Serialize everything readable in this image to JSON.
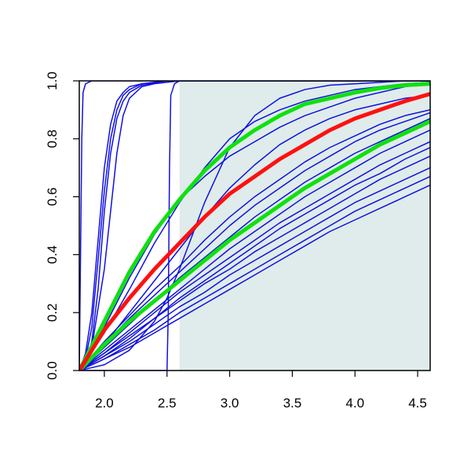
{
  "chart_data": {
    "type": "line",
    "title": "",
    "xlabel": "",
    "ylabel": "",
    "xlim": [
      1.8,
      4.6
    ],
    "ylim": [
      0.0,
      1.0
    ],
    "x_ticks": [
      2.0,
      2.5,
      3.0,
      3.5,
      4.0,
      4.5
    ],
    "y_ticks": [
      0.0,
      0.2,
      0.4,
      0.6,
      0.8,
      1.0
    ],
    "x_tick_labels": [
      "2.0",
      "2.5",
      "3.0",
      "3.5",
      "4.0",
      "4.5"
    ],
    "y_tick_labels": [
      "0.0",
      "0.2",
      "0.4",
      "0.6",
      "0.8",
      "1.0"
    ],
    "shaded_region": {
      "x_from": 2.6,
      "x_to": 4.6,
      "color": "#dfeceb"
    },
    "grid": false,
    "legend": "none",
    "colors": {
      "curves": "#1010e0",
      "highlight": "#ff1010",
      "bounds": "#10e010",
      "axis": "#000000"
    },
    "series": [
      {
        "color": "#ff1010",
        "width": 5,
        "x": [
          1.8,
          2.0,
          2.2,
          2.4,
          2.6,
          2.8,
          3.0,
          3.2,
          3.4,
          3.6,
          3.8,
          4.0,
          4.2,
          4.4,
          4.6
        ],
        "y": [
          0.0,
          0.14,
          0.25,
          0.35,
          0.44,
          0.53,
          0.61,
          0.67,
          0.73,
          0.78,
          0.83,
          0.87,
          0.9,
          0.93,
          0.955
        ]
      },
      {
        "color": "#10e010",
        "width": 5,
        "x": [
          1.8,
          2.0,
          2.2,
          2.4,
          2.6,
          2.8,
          3.0,
          3.2,
          3.4,
          3.6,
          3.8,
          4.0,
          4.2,
          4.4,
          4.6
        ],
        "y": [
          0.0,
          0.17,
          0.34,
          0.48,
          0.59,
          0.69,
          0.77,
          0.83,
          0.88,
          0.92,
          0.94,
          0.96,
          0.975,
          0.985,
          0.99
        ]
      },
      {
        "color": "#10e010",
        "width": 5,
        "x": [
          1.8,
          2.0,
          2.2,
          2.4,
          2.6,
          2.8,
          3.0,
          3.2,
          3.4,
          3.6,
          3.8,
          4.0,
          4.2,
          4.4,
          4.6
        ],
        "y": [
          0.0,
          0.09,
          0.17,
          0.24,
          0.31,
          0.38,
          0.45,
          0.51,
          0.57,
          0.63,
          0.68,
          0.73,
          0.78,
          0.82,
          0.86
        ]
      },
      {
        "color": "#1010e0",
        "width": 1.5,
        "x": [
          1.8,
          1.81,
          1.82,
          1.83,
          1.85,
          1.9,
          4.6
        ],
        "y": [
          0.0,
          0.4,
          0.8,
          0.96,
          0.99,
          1.0,
          1.0
        ]
      },
      {
        "color": "#1010e0",
        "width": 1.5,
        "x": [
          1.8,
          1.85,
          1.9,
          1.95,
          2.0,
          2.05,
          2.1,
          2.15,
          2.2,
          2.3,
          2.5,
          4.6
        ],
        "y": [
          0.0,
          0.04,
          0.15,
          0.38,
          0.62,
          0.8,
          0.9,
          0.95,
          0.97,
          0.99,
          1.0,
          1.0
        ]
      },
      {
        "color": "#1010e0",
        "width": 1.5,
        "x": [
          1.8,
          1.85,
          1.9,
          1.95,
          2.0,
          2.05,
          2.1,
          2.15,
          2.2,
          2.3,
          2.5,
          4.6
        ],
        "y": [
          0.0,
          0.03,
          0.1,
          0.28,
          0.55,
          0.75,
          0.87,
          0.93,
          0.96,
          0.985,
          1.0,
          1.0
        ]
      },
      {
        "color": "#1010e0",
        "width": 1.5,
        "x": [
          1.8,
          1.85,
          1.9,
          1.95,
          2.0,
          2.05,
          2.1,
          2.15,
          2.2,
          2.3,
          2.5,
          4.6
        ],
        "y": [
          0.0,
          0.06,
          0.2,
          0.45,
          0.7,
          0.85,
          0.93,
          0.96,
          0.98,
          0.99,
          1.0,
          1.0
        ]
      },
      {
        "color": "#1010e0",
        "width": 1.5,
        "x": [
          1.8,
          1.9,
          2.0,
          2.1,
          2.15,
          2.2,
          2.3,
          2.4,
          2.6,
          4.6
        ],
        "y": [
          0.0,
          0.08,
          0.35,
          0.75,
          0.88,
          0.94,
          0.98,
          0.99,
          1.0,
          1.0
        ]
      },
      {
        "color": "#1010e0",
        "width": 1.5,
        "x": [
          1.8,
          2.5,
          2.51,
          2.52,
          2.53,
          2.56,
          2.6,
          4.6
        ],
        "y": [
          0.0,
          0.0,
          0.2,
          0.7,
          0.95,
          0.99,
          1.0,
          1.0
        ]
      },
      {
        "color": "#1010e0",
        "width": 1.5,
        "x": [
          1.8,
          2.0,
          2.2,
          2.4,
          2.6,
          2.8,
          3.0,
          3.2,
          3.4,
          3.6,
          3.8,
          4.0,
          4.2,
          4.4,
          4.6
        ],
        "y": [
          0.0,
          0.13,
          0.28,
          0.44,
          0.58,
          0.7,
          0.8,
          0.86,
          0.9,
          0.93,
          0.95,
          0.97,
          0.98,
          0.99,
          0.995
        ]
      },
      {
        "color": "#1010e0",
        "width": 1.5,
        "x": [
          1.8,
          2.0,
          2.2,
          2.4,
          2.5,
          2.6,
          2.8,
          3.0,
          3.2,
          3.4,
          3.6,
          3.8,
          4.0,
          4.2,
          4.4,
          4.6
        ],
        "y": [
          0.0,
          0.02,
          0.07,
          0.17,
          0.25,
          0.35,
          0.58,
          0.77,
          0.88,
          0.94,
          0.97,
          0.985,
          0.99,
          0.995,
          1.0,
          1.0
        ]
      },
      {
        "color": "#1010e0",
        "width": 1.5,
        "x": [
          1.8,
          2.0,
          2.2,
          2.4,
          2.6,
          2.8,
          3.0,
          3.2,
          3.4,
          3.6,
          3.8,
          4.0,
          4.2,
          4.4,
          4.6
        ],
        "y": [
          0.0,
          0.15,
          0.32,
          0.47,
          0.59,
          0.67,
          0.74,
          0.79,
          0.84,
          0.88,
          0.91,
          0.94,
          0.96,
          0.98,
          0.99
        ]
      },
      {
        "color": "#1010e0",
        "width": 1.5,
        "x": [
          1.8,
          2.0,
          2.2,
          2.4,
          2.6,
          2.8,
          3.0,
          3.2,
          3.4,
          3.6,
          3.8,
          4.0,
          4.2,
          4.4,
          4.6
        ],
        "y": [
          0.0,
          0.09,
          0.2,
          0.31,
          0.42,
          0.53,
          0.63,
          0.71,
          0.78,
          0.83,
          0.87,
          0.9,
          0.92,
          0.94,
          0.95
        ]
      },
      {
        "color": "#1010e0",
        "width": 1.5,
        "x": [
          1.8,
          2.0,
          2.2,
          2.4,
          2.6,
          2.8,
          3.0,
          3.2,
          3.4,
          3.6,
          3.8,
          4.0,
          4.2,
          4.4,
          4.6
        ],
        "y": [
          0.0,
          0.1,
          0.19,
          0.28,
          0.36,
          0.45,
          0.53,
          0.6,
          0.66,
          0.72,
          0.77,
          0.81,
          0.85,
          0.88,
          0.9
        ]
      },
      {
        "color": "#1010e0",
        "width": 1.5,
        "x": [
          1.8,
          2.0,
          2.2,
          2.4,
          2.6,
          2.8,
          3.0,
          3.2,
          3.4,
          3.6,
          3.8,
          4.0,
          4.2,
          4.4,
          4.6
        ],
        "y": [
          0.0,
          0.09,
          0.18,
          0.26,
          0.34,
          0.42,
          0.5,
          0.57,
          0.63,
          0.69,
          0.74,
          0.79,
          0.83,
          0.86,
          0.89
        ]
      },
      {
        "color": "#1010e0",
        "width": 1.5,
        "x": [
          1.8,
          2.0,
          2.2,
          2.4,
          2.6,
          2.8,
          3.0,
          3.2,
          3.4,
          3.6,
          3.8,
          4.0,
          4.2,
          4.4,
          4.6
        ],
        "y": [
          0.0,
          0.08,
          0.16,
          0.24,
          0.32,
          0.39,
          0.46,
          0.53,
          0.59,
          0.65,
          0.7,
          0.75,
          0.79,
          0.83,
          0.87
        ]
      },
      {
        "color": "#1010e0",
        "width": 1.5,
        "x": [
          1.8,
          2.0,
          2.2,
          2.4,
          2.6,
          2.8,
          3.0,
          3.2,
          3.4,
          3.6,
          3.8,
          4.0,
          4.2,
          4.4,
          4.6
        ],
        "y": [
          0.0,
          0.07,
          0.14,
          0.21,
          0.28,
          0.35,
          0.42,
          0.48,
          0.54,
          0.6,
          0.65,
          0.7,
          0.75,
          0.79,
          0.83
        ]
      },
      {
        "color": "#1010e0",
        "width": 1.5,
        "x": [
          1.8,
          2.0,
          2.2,
          2.4,
          2.6,
          2.8,
          3.0,
          3.2,
          3.4,
          3.6,
          3.8,
          4.0,
          4.2,
          4.4,
          4.6
        ],
        "y": [
          0.0,
          0.06,
          0.13,
          0.2,
          0.27,
          0.33,
          0.39,
          0.45,
          0.51,
          0.56,
          0.61,
          0.66,
          0.71,
          0.75,
          0.79
        ]
      },
      {
        "color": "#1010e0",
        "width": 1.5,
        "x": [
          1.8,
          2.0,
          2.2,
          2.4,
          2.6,
          2.8,
          3.0,
          3.2,
          3.4,
          3.6,
          3.8,
          4.0,
          4.2,
          4.4,
          4.6
        ],
        "y": [
          0.0,
          0.05,
          0.11,
          0.18,
          0.25,
          0.31,
          0.37,
          0.43,
          0.49,
          0.54,
          0.59,
          0.64,
          0.68,
          0.73,
          0.77
        ]
      },
      {
        "color": "#1010e0",
        "width": 1.5,
        "x": [
          1.8,
          2.0,
          2.2,
          2.4,
          2.6,
          2.8,
          3.0,
          3.2,
          3.4,
          3.6,
          3.8,
          4.0,
          4.2,
          4.4,
          4.6
        ],
        "y": [
          0.0,
          0.06,
          0.12,
          0.18,
          0.24,
          0.3,
          0.35,
          0.41,
          0.46,
          0.51,
          0.56,
          0.61,
          0.66,
          0.7,
          0.74
        ]
      },
      {
        "color": "#1010e0",
        "width": 1.5,
        "x": [
          1.8,
          2.0,
          2.2,
          2.4,
          2.6,
          2.8,
          3.0,
          3.2,
          3.4,
          3.6,
          3.8,
          4.0,
          4.2,
          4.4,
          4.6
        ],
        "y": [
          0.0,
          0.05,
          0.1,
          0.16,
          0.22,
          0.27,
          0.33,
          0.38,
          0.43,
          0.48,
          0.53,
          0.58,
          0.62,
          0.66,
          0.7
        ]
      },
      {
        "color": "#1010e0",
        "width": 1.5,
        "x": [
          1.8,
          2.0,
          2.2,
          2.4,
          2.6,
          2.8,
          3.0,
          3.2,
          3.4,
          3.6,
          3.8,
          4.0,
          4.2,
          4.4,
          4.6
        ],
        "y": [
          0.0,
          0.04,
          0.09,
          0.14,
          0.2,
          0.25,
          0.3,
          0.35,
          0.4,
          0.45,
          0.5,
          0.55,
          0.59,
          0.63,
          0.67
        ]
      },
      {
        "color": "#1010e0",
        "width": 1.5,
        "x": [
          1.8,
          2.0,
          2.2,
          2.4,
          2.6,
          2.8,
          3.0,
          3.2,
          3.4,
          3.6,
          3.8,
          4.0,
          4.2,
          4.4,
          4.6
        ],
        "y": [
          0.0,
          0.04,
          0.08,
          0.13,
          0.18,
          0.23,
          0.28,
          0.33,
          0.38,
          0.43,
          0.48,
          0.52,
          0.56,
          0.6,
          0.64
        ]
      }
    ]
  }
}
